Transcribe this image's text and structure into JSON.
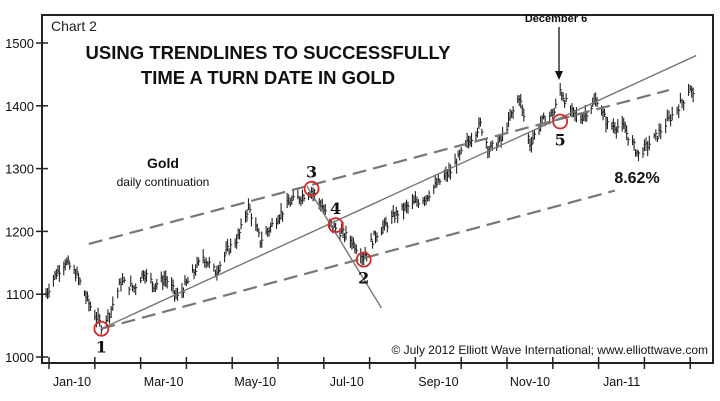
{
  "chart_data": {
    "type": "line",
    "subtype": "daily-price-bars",
    "chart_label": "Chart 2",
    "title": [
      "USING TRENDLINES TO SUCCESSFULLY",
      "TIME A TURN DATE IN GOLD"
    ],
    "series_name": "Gold",
    "series_subtitle": "daily continuation",
    "xlabel": "",
    "ylabel": "",
    "ylim": [
      1000,
      1500
    ],
    "y_ticks": [
      1000,
      1100,
      1200,
      1300,
      1400,
      1500
    ],
    "x_ticks": [
      {
        "date": "2010-01-01",
        "label": "Jan-10"
      },
      {
        "date": "2010-02-01",
        "label": ""
      },
      {
        "date": "2010-03-01",
        "label": "Mar-10"
      },
      {
        "date": "2010-04-01",
        "label": ""
      },
      {
        "date": "2010-05-01",
        "label": "May-10"
      },
      {
        "date": "2010-06-01",
        "label": ""
      },
      {
        "date": "2010-07-01",
        "label": "Jul-10"
      },
      {
        "date": "2010-08-01",
        "label": ""
      },
      {
        "date": "2010-09-01",
        "label": "Sep-10"
      },
      {
        "date": "2010-10-01",
        "label": ""
      },
      {
        "date": "2010-11-01",
        "label": "Nov-10"
      },
      {
        "date": "2010-12-01",
        "label": ""
      },
      {
        "date": "2011-01-01",
        "label": "Jan-11"
      },
      {
        "date": "2011-02-01",
        "label": ""
      },
      {
        "date": "2011-03-01",
        "label": ""
      }
    ],
    "prices": [
      [
        "2009-12-30",
        1100
      ],
      [
        "2010-01-05",
        1130
      ],
      [
        "2010-01-12",
        1152
      ],
      [
        "2010-01-20",
        1130
      ],
      [
        "2010-01-28",
        1085
      ],
      [
        "2010-02-05",
        1050
      ],
      [
        "2010-02-10",
        1070
      ],
      [
        "2010-02-17",
        1120
      ],
      [
        "2010-02-25",
        1110
      ],
      [
        "2010-03-03",
        1135
      ],
      [
        "2010-03-10",
        1115
      ],
      [
        "2010-03-18",
        1125
      ],
      [
        "2010-03-26",
        1095
      ],
      [
        "2010-04-02",
        1120
      ],
      [
        "2010-04-12",
        1160
      ],
      [
        "2010-04-20",
        1135
      ],
      [
        "2010-04-28",
        1170
      ],
      [
        "2010-05-05",
        1190
      ],
      [
        "2010-05-12",
        1240
      ],
      [
        "2010-05-20",
        1185
      ],
      [
        "2010-05-28",
        1210
      ],
      [
        "2010-06-08",
        1245
      ],
      [
        "2010-06-18",
        1258
      ],
      [
        "2010-06-23",
        1265
      ],
      [
        "2010-06-30",
        1240
      ],
      [
        "2010-07-05",
        1212
      ],
      [
        "2010-07-12",
        1200
      ],
      [
        "2010-07-20",
        1185
      ],
      [
        "2010-07-28",
        1160
      ],
      [
        "2010-08-05",
        1195
      ],
      [
        "2010-08-12",
        1210
      ],
      [
        "2010-08-20",
        1230
      ],
      [
        "2010-08-31",
        1245
      ],
      [
        "2010-09-08",
        1255
      ],
      [
        "2010-09-15",
        1275
      ],
      [
        "2010-09-24",
        1295
      ],
      [
        "2010-10-05",
        1340
      ],
      [
        "2010-10-14",
        1370
      ],
      [
        "2010-10-20",
        1330
      ],
      [
        "2010-10-28",
        1345
      ],
      [
        "2010-11-04",
        1385
      ],
      [
        "2010-11-09",
        1415
      ],
      [
        "2010-11-16",
        1340
      ],
      [
        "2010-11-24",
        1375
      ],
      [
        "2010-12-02",
        1390
      ],
      [
        "2010-12-06",
        1425
      ],
      [
        "2010-12-13",
        1390
      ],
      [
        "2010-12-20",
        1380
      ],
      [
        "2010-12-31",
        1410
      ],
      [
        "2011-01-07",
        1370
      ],
      [
        "2011-01-18",
        1365
      ],
      [
        "2011-01-28",
        1322
      ],
      [
        "2011-02-08",
        1350
      ],
      [
        "2011-02-18",
        1385
      ],
      [
        "2011-02-25",
        1410
      ],
      [
        "2011-03-01",
        1430
      ],
      [
        "2011-03-03",
        1415
      ]
    ],
    "trendlines": [
      {
        "style": "solid",
        "from": [
          "2010-02-05",
          1045
        ],
        "to": [
          "2011-03-05",
          1480
        ]
      },
      {
        "style": "solid",
        "from": [
          "2010-06-20",
          1272
        ],
        "to": [
          "2010-08-09",
          1078
        ]
      },
      {
        "style": "dashed",
        "from": [
          "2010-01-28",
          1180
        ],
        "to": [
          "2011-02-16",
          1425
        ]
      },
      {
        "style": "dashed",
        "from": [
          "2010-02-05",
          1045
        ],
        "to": [
          "2011-01-12",
          1265
        ]
      }
    ],
    "wave_points": [
      {
        "label": "1",
        "date": "2010-02-05",
        "price": 1045,
        "label_pos": "below"
      },
      {
        "label": "3",
        "date": "2010-06-23",
        "price": 1268,
        "label_pos": "above"
      },
      {
        "label": "4",
        "date": "2010-07-09",
        "price": 1210,
        "label_pos": "above"
      },
      {
        "label": "2",
        "date": "2010-07-28",
        "price": 1155,
        "label_pos": "below"
      },
      {
        "label": "5",
        "date": "2010-12-06",
        "price": 1375,
        "label_pos": "below"
      }
    ],
    "annotations": {
      "turn_date": {
        "label": "December 6",
        "date": "2010-12-06"
      },
      "decline": "8.62%"
    },
    "copyright": "© July 2012 Elliott Wave International; www.elliottwave.com",
    "colors": {
      "bars": "#222222",
      "trendline": "#777777",
      "circle": "#d42a2a",
      "frame": "#222222"
    }
  }
}
